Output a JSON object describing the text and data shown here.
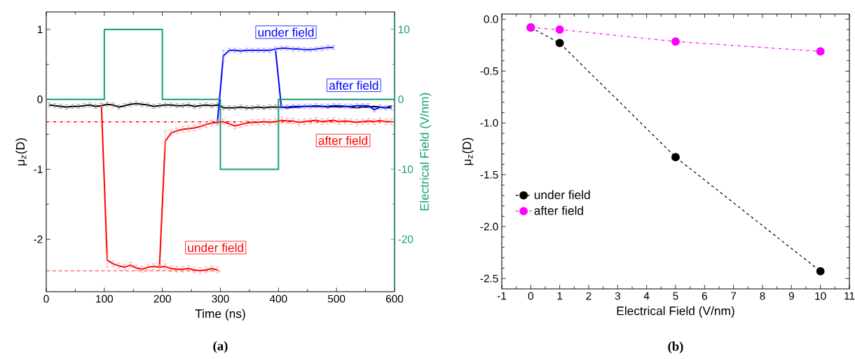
{
  "chart_data": [
    {
      "type": "line",
      "title": "(a)",
      "xlabel": "Time (ns)",
      "ylabel": "μ$_{z}$(D)",
      "y2label": "Electrical Field (V/nm)",
      "xlim": [
        0,
        600
      ],
      "ylim": [
        -2.75,
        1.25
      ],
      "y2lim": [
        -27.5,
        12.5
      ],
      "xticks": [
        0,
        100,
        200,
        300,
        400,
        500,
        600
      ],
      "yticks": [
        -2,
        -1,
        0,
        1
      ],
      "y2ticks": [
        -20,
        -10,
        0,
        10
      ],
      "series": [
        {
          "color": "#000000",
          "x": [
            5,
            15,
            25,
            35,
            45,
            55,
            65,
            75,
            85,
            95,
            105,
            115,
            125,
            135,
            145,
            155,
            165,
            175,
            185,
            195,
            205,
            215,
            225,
            235,
            245,
            255,
            265,
            275,
            285,
            295,
            305,
            315,
            325,
            335,
            345,
            355,
            365,
            375,
            385,
            395,
            405,
            415,
            425,
            435,
            445,
            455,
            465,
            475,
            485,
            495,
            505,
            515,
            525,
            535,
            545,
            555,
            565,
            575,
            585,
            595
          ],
          "values": [
            -0.08,
            -0.09,
            -0.1,
            -0.11,
            -0.1,
            -0.1,
            -0.09,
            -0.08,
            -0.1,
            -0.09,
            -0.07,
            -0.08,
            -0.11,
            -0.09,
            -0.07,
            -0.06,
            -0.07,
            -0.08,
            -0.1,
            -0.09,
            -0.08,
            -0.08,
            -0.09,
            -0.09,
            -0.08,
            -0.1,
            -0.09,
            -0.08,
            -0.09,
            -0.08,
            -0.12,
            -0.12,
            -0.12,
            -0.11,
            -0.12,
            -0.12,
            -0.11,
            -0.12,
            -0.11,
            -0.11,
            -0.11,
            -0.12,
            -0.11,
            -0.11,
            -0.1,
            -0.1,
            -0.1,
            -0.1,
            -0.11,
            -0.1,
            -0.11,
            -0.1,
            -0.11,
            -0.12,
            -0.11,
            -0.11,
            -0.1,
            -0.11,
            -0.12,
            -0.09
          ],
          "errors": [
            0.03,
            0.03,
            0.03,
            0.03,
            0.03,
            0.03,
            0.03,
            0.03,
            0.03,
            0.03,
            0.03,
            0.03,
            0.03,
            0.03,
            0.03,
            0.03,
            0.03,
            0.03,
            0.03,
            0.03,
            0.03,
            0.03,
            0.03,
            0.03,
            0.03,
            0.03,
            0.03,
            0.03,
            0.03,
            0.03,
            0.03,
            0.03,
            0.03,
            0.03,
            0.03,
            0.03,
            0.03,
            0.03,
            0.03,
            0.03,
            null,
            null,
            null,
            null,
            null,
            null,
            null,
            null,
            null,
            null,
            null,
            null,
            null,
            null,
            null,
            null,
            null,
            null,
            null,
            null
          ]
        },
        {
          "name": "under field",
          "color": "#ff0000",
          "x": [
            95,
            105,
            115,
            125,
            135,
            145,
            155,
            165,
            175,
            185,
            195,
            205,
            215,
            225,
            235,
            245,
            255,
            265,
            275,
            285,
            295
          ],
          "values": [
            -0.08,
            -2.3,
            -2.35,
            -2.38,
            -2.4,
            -2.37,
            -2.41,
            -2.43,
            -2.4,
            -2.39,
            -2.4,
            -2.39,
            -2.42,
            -2.43,
            -2.43,
            -2.42,
            -2.44,
            -2.45,
            -2.44,
            -2.42,
            -2.44
          ],
          "errors": [
            0.03,
            0.1,
            0.04,
            0.04,
            0.04,
            0.04,
            0.04,
            0.04,
            0.04,
            0.04,
            0.04,
            0.04,
            0.04,
            0.04,
            0.04,
            0.04,
            0.04,
            0.04,
            0.04,
            0.04,
            0.04
          ]
        },
        {
          "name": "after field",
          "color": "#ff0000",
          "x": [
            195,
            205,
            215,
            225,
            235,
            245,
            255,
            265,
            275,
            285,
            295,
            305,
            315,
            325,
            335,
            345,
            355,
            365,
            375,
            385,
            395,
            405,
            415,
            425,
            435,
            445,
            455,
            465,
            475,
            485,
            495,
            505,
            515,
            525,
            535,
            545,
            555,
            565,
            575,
            585,
            595
          ],
          "values": [
            -2.4,
            -0.6,
            -0.48,
            -0.45,
            -0.43,
            -0.42,
            -0.41,
            -0.39,
            -0.36,
            -0.34,
            -0.33,
            -0.32,
            -0.35,
            -0.38,
            -0.36,
            -0.34,
            -0.33,
            -0.33,
            -0.32,
            -0.33,
            -0.32,
            -0.3,
            -0.31,
            -0.31,
            -0.33,
            -0.32,
            -0.31,
            -0.3,
            -0.32,
            -0.31,
            -0.3,
            -0.32,
            -0.31,
            -0.32,
            -0.33,
            -0.32,
            -0.31,
            -0.32,
            -0.3,
            -0.32,
            -0.32
          ],
          "errors": [
            0.04,
            0.15,
            0.04,
            0.04,
            0.04,
            0.04,
            0.04,
            0.04,
            0.04,
            0.04,
            0.04,
            0.04,
            0.04,
            0.04,
            0.04,
            0.04,
            0.04,
            0.04,
            0.04,
            0.04,
            0.04,
            0.04,
            0.04,
            0.04,
            0.04,
            0.04,
            0.04,
            0.04,
            0.04,
            0.04,
            0.04,
            0.04,
            0.04,
            0.04,
            0.04,
            0.04,
            0.04,
            0.04,
            0.04,
            0.04,
            0.04
          ]
        },
        {
          "name": "under field",
          "color": "#0000ff",
          "x": [
            295,
            305,
            315,
            325,
            335,
            345,
            355,
            365,
            375,
            385,
            395,
            405,
            415,
            425,
            435,
            445,
            455,
            465,
            475,
            485,
            495
          ],
          "values": [
            -0.32,
            0.62,
            0.7,
            0.7,
            0.69,
            0.7,
            0.7,
            0.7,
            0.7,
            0.7,
            0.72,
            0.73,
            0.73,
            0.72,
            0.72,
            0.71,
            0.71,
            0.72,
            0.73,
            0.74,
            0.74
          ],
          "errors": [
            0.03,
            0.08,
            0.03,
            0.03,
            0.03,
            0.03,
            0.03,
            0.03,
            0.03,
            0.03,
            0.03,
            0.03,
            0.03,
            0.03,
            0.03,
            0.03,
            0.03,
            0.03,
            0.03,
            0.03,
            0.03
          ]
        },
        {
          "name": "after field",
          "color": "#0000ff",
          "x": [
            395,
            405,
            415,
            425,
            435,
            445,
            455,
            465,
            475,
            485,
            495,
            505,
            515,
            525,
            535,
            545,
            555,
            565,
            575,
            585,
            595
          ],
          "values": [
            0.7,
            -0.11,
            -0.11,
            -0.1,
            -0.1,
            -0.1,
            -0.1,
            -0.09,
            -0.1,
            -0.1,
            -0.09,
            -0.09,
            -0.1,
            -0.1,
            -0.09,
            -0.09,
            -0.09,
            -0.15,
            -0.11,
            -0.12,
            -0.12
          ],
          "errors": [
            null,
            0.03,
            0.03,
            0.03,
            0.03,
            0.03,
            0.03,
            0.03,
            0.03,
            0.03,
            0.03,
            0.03,
            0.03,
            0.03,
            0.03,
            0.03,
            0.03,
            0.03,
            0.03,
            0.03,
            0.03
          ]
        },
        {
          "color": "#ff0000",
          "line_style": "dashed",
          "x": [
            0,
            300
          ],
          "values": [
            -2.45,
            -2.45
          ]
        },
        {
          "type": "step",
          "axis": "y2",
          "color": "#14a07a",
          "x": [
            0,
            100,
            200,
            300,
            400,
            600
          ],
          "values": [
            0,
            10,
            0,
            -10,
            0,
            0
          ]
        }
      ],
      "ref_lines": [
        {
          "axis": "y",
          "value": -0.32,
          "color": "#ff0000",
          "line_style": "dashdot"
        }
      ]
    },
    {
      "type": "line",
      "title": "(b)",
      "xlabel": "Electrical Field (V/nm)",
      "ylabel": "μ$_{z}$(D)",
      "xlim": [
        -1,
        11
      ],
      "ylim": [
        -2.6,
        0.05
      ],
      "xticks": [
        -1,
        0,
        1,
        2,
        3,
        4,
        5,
        6,
        7,
        8,
        9,
        10,
        11
      ],
      "yticks": [
        {
          "value": -2.5,
          "label": "-2.5"
        },
        {
          "value": -2,
          "label": "-2.0"
        },
        {
          "value": -1.5,
          "label": "-1.5"
        },
        {
          "value": -1,
          "label": "-1.0"
        },
        {
          "value": -0.5,
          "label": "-0.5"
        },
        {
          "value": 0,
          "label": "0.0"
        }
      ],
      "marker": "circle",
      "legend": "bottom left",
      "x": [
        0,
        1,
        5,
        10
      ],
      "series": [
        {
          "name": "under field",
          "color": "#000000",
          "line_style": "dashed",
          "values": [
            -0.08,
            -0.23,
            -1.33,
            -2.43
          ]
        },
        {
          "name": "after field",
          "color": "#ff00ff",
          "line_style": "dashdot",
          "values": [
            -0.08,
            -0.1,
            -0.215,
            -0.31
          ]
        }
      ]
    }
  ]
}
